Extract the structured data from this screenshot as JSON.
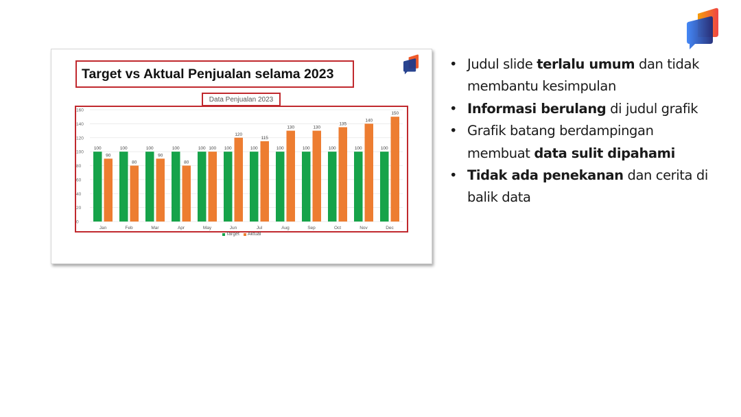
{
  "slide": {
    "embedded_slide_title": "Target vs Aktual Penjualan selama 2023",
    "bullets": [
      {
        "parts": [
          {
            "text": "Judul slide ",
            "bold": false
          },
          {
            "text": "terlalu umum",
            "bold": true
          },
          {
            "text": " dan tidak membantu kesimpulan",
            "bold": false
          }
        ]
      },
      {
        "parts": [
          {
            "text": "Informasi berulang",
            "bold": true
          },
          {
            "text": " di judul grafik",
            "bold": false
          }
        ]
      },
      {
        "parts": [
          {
            "text": "Grafik batang berdampingan membuat ",
            "bold": false
          },
          {
            "text": "data sulit dipahami",
            "bold": true
          }
        ]
      },
      {
        "parts": [
          {
            "text": "Tidak ada penekanan",
            "bold": true
          },
          {
            "text": " dan cerita di balik data",
            "bold": false
          }
        ]
      }
    ],
    "icons": [
      "chat-bubbles-logo-icon"
    ]
  },
  "colors": {
    "target": "#16a34a",
    "aktual": "#ed7d31",
    "highlight_border": "#c0282d"
  },
  "chart_data": {
    "type": "bar",
    "title": "Data Penjualan 2023",
    "categories": [
      "Jan",
      "Feb",
      "Mar",
      "Apr",
      "May",
      "Jun",
      "Jul",
      "Aug",
      "Sep",
      "Oct",
      "Nov",
      "Dec"
    ],
    "series": [
      {
        "name": "Target",
        "values": [
          100,
          100,
          100,
          100,
          100,
          100,
          100,
          100,
          100,
          100,
          100,
          100
        ]
      },
      {
        "name": "Aktual",
        "values": [
          90,
          80,
          90,
          80,
          100,
          120,
          115,
          130,
          130,
          135,
          140,
          150
        ]
      }
    ],
    "xlabel": "",
    "ylabel": "",
    "ylim": [
      0,
      160
    ],
    "yticks": [
      0,
      20,
      40,
      60,
      80,
      100,
      120,
      140,
      160
    ],
    "grid": true,
    "data_labels": true,
    "legend_position": "bottom"
  }
}
